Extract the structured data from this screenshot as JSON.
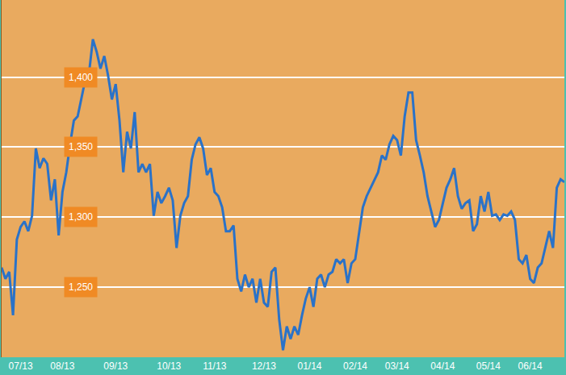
{
  "chart_data": {
    "type": "line",
    "color": "#2a72c8",
    "grid": true,
    "categories": [
      null,
      null,
      null,
      null,
      null,
      "07/13",
      null,
      null,
      null,
      null,
      null,
      null,
      null,
      null,
      null,
      null,
      "08/13",
      null,
      null,
      null,
      null,
      null,
      null,
      null,
      null,
      null,
      null,
      null,
      null,
      null,
      "09/13",
      null,
      null,
      null,
      null,
      null,
      null,
      null,
      null,
      null,
      null,
      null,
      null,
      null,
      "10/13",
      null,
      null,
      null,
      null,
      null,
      null,
      null,
      null,
      null,
      null,
      null,
      "11/13",
      null,
      null,
      null,
      null,
      null,
      null,
      null,
      null,
      null,
      null,
      null,
      null,
      "12/13",
      null,
      null,
      null,
      null,
      null,
      null,
      null,
      null,
      null,
      null,
      null,
      "01/14",
      null,
      null,
      null,
      null,
      null,
      null,
      null,
      null,
      null,
      null,
      null,
      "02/14",
      null,
      null,
      null,
      null,
      null,
      null,
      null,
      null,
      null,
      null,
      "03/14",
      null,
      null,
      null,
      null,
      null,
      null,
      null,
      null,
      null,
      null,
      null,
      "04/14",
      null,
      null,
      null,
      null,
      null,
      null,
      null,
      null,
      null,
      null,
      null,
      "05/14",
      null,
      null,
      null,
      null,
      null,
      null,
      null,
      null,
      null,
      null,
      "06/14",
      null,
      null,
      null,
      null,
      null,
      null,
      null,
      null,
      null
    ],
    "values": [
      1264,
      1256,
      1261,
      1230,
      1284,
      1293,
      1297,
      1290,
      1301,
      1349,
      1335,
      1342,
      1338,
      1312,
      1327,
      1287,
      1318,
      1332,
      1352,
      1369,
      1372,
      1386,
      1398,
      1403,
      1427,
      1418,
      1406,
      1415,
      1401,
      1384,
      1395,
      1369,
      1332,
      1361,
      1349,
      1375,
      1332,
      1338,
      1332,
      1338,
      1301,
      1318,
      1310,
      1315,
      1321,
      1312,
      1278,
      1301,
      1310,
      1315,
      1341,
      1352,
      1357,
      1349,
      1330,
      1335,
      1318,
      1315,
      1307,
      1290,
      1290,
      1294,
      1256,
      1247,
      1259,
      1250,
      1256,
      1239,
      1256,
      1239,
      1236,
      1261,
      1264,
      1227,
      1205,
      1222,
      1213,
      1222,
      1216,
      1230,
      1242,
      1250,
      1236,
      1256,
      1259,
      1250,
      1259,
      1261,
      1270,
      1267,
      1270,
      1253,
      1267,
      1270,
      1290,
      1307,
      1315,
      1321,
      1327,
      1332,
      1344,
      1341,
      1352,
      1358,
      1355,
      1344,
      1372,
      1389,
      1389,
      1355,
      1344,
      1332,
      1315,
      1304,
      1293,
      1298,
      1310,
      1321,
      1327,
      1335,
      1315,
      1306,
      1310,
      1312,
      1290,
      1295,
      1315,
      1304,
      1318,
      1301,
      1302,
      1298,
      1302,
      1301,
      1304,
      1298,
      1270,
      1267,
      1273,
      1256,
      1253,
      1264,
      1267,
      1278,
      1290,
      1278,
      1321,
      1327,
      1325
    ],
    "ylim": [
      1200,
      1455
    ],
    "yticks": [
      {
        "value": 1250,
        "label": "1,250"
      },
      {
        "value": 1300,
        "label": "1,300"
      },
      {
        "value": 1350,
        "label": "1,350"
      },
      {
        "value": 1400,
        "label": "1,400"
      }
    ]
  }
}
